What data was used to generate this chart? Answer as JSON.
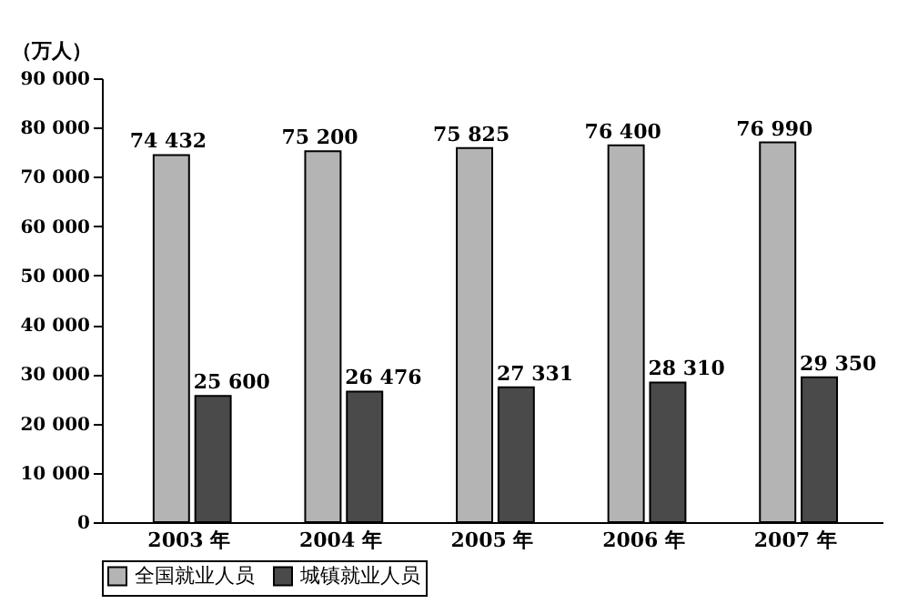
{
  "chart_data": {
    "type": "bar",
    "ylabel": "（万人）",
    "categories": [
      "2003 年",
      "2004 年",
      "2005 年",
      "2006 年",
      "2007 年"
    ],
    "series": [
      {
        "name": "全国就业人员",
        "color": "#b4b4b4",
        "values": [
          74432,
          75200,
          75825,
          76400,
          76990
        ],
        "value_labels": [
          "74 432",
          "75 200",
          "75 825",
          "76 400",
          "76 990"
        ]
      },
      {
        "name": "城镇就业人员",
        "color": "#4a4a4a",
        "values": [
          25600,
          26476,
          27331,
          28310,
          29350
        ],
        "value_labels": [
          "25 600",
          "26 476",
          "27 331",
          "28 310",
          "29 350"
        ]
      }
    ],
    "ylim": [
      0,
      90000
    ],
    "yticks": [
      {
        "value": 0,
        "label": "0"
      },
      {
        "value": 10000,
        "label": "10 000"
      },
      {
        "value": 20000,
        "label": "20 000"
      },
      {
        "value": 30000,
        "label": "30 000"
      },
      {
        "value": 40000,
        "label": "40 000"
      },
      {
        "value": 50000,
        "label": "50 000"
      },
      {
        "value": 60000,
        "label": "60 000"
      },
      {
        "value": 70000,
        "label": "70 000"
      },
      {
        "value": 80000,
        "label": "80 000"
      },
      {
        "value": 90000,
        "label": "90 000"
      }
    ],
    "grid": false,
    "legend": "bottom"
  }
}
